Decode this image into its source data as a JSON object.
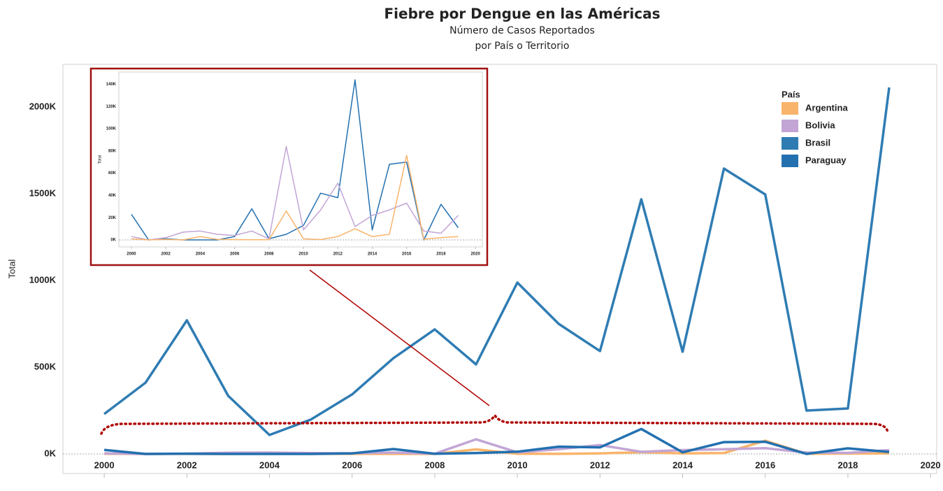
{
  "chart_data": [
    {
      "type": "line",
      "title": "Fiebre por Dengue en las Américas",
      "subtitle": [
        "Número de Casos Reportados",
        "por País o Territorio"
      ],
      "y_label": "Total",
      "x": [
        2000,
        2001,
        2002,
        2003,
        2004,
        2005,
        2006,
        2007,
        2008,
        2009,
        2010,
        2011,
        2012,
        2013,
        2014,
        2015,
        2016,
        2017,
        2018,
        2019
      ],
      "series": [
        {
          "name": "Argentina",
          "color": "#f9b46b",
          "values": [
            1000,
            0,
            500,
            0,
            3000,
            500,
            300,
            200,
            100,
            26000,
            1000,
            300,
            3000,
            10000,
            3000,
            5000,
            76000,
            600,
            2000,
            3000
          ]
        },
        {
          "name": "Bolivia",
          "color": "#c2a5d5",
          "values": [
            3000,
            0,
            2000,
            7000,
            8000,
            5000,
            4000,
            8000,
            1000,
            84000,
            9000,
            27000,
            51000,
            12000,
            22000,
            27000,
            33000,
            8000,
            6000,
            22000
          ]
        },
        {
          "name": "Brasil",
          "color": "#2f7cb3",
          "values": [
            230000,
            411000,
            770000,
            335000,
            109000,
            198000,
            343000,
            552000,
            718000,
            516000,
            988000,
            750000,
            593000,
            1468000,
            589000,
            1645000,
            1496000,
            250000,
            262000,
            2113000
          ]
        },
        {
          "name": "Paraguay",
          "color": "#2270b0",
          "values": [
            23000,
            0,
            1000,
            0,
            0,
            0,
            3000,
            28000,
            1000,
            5000,
            13000,
            42000,
            38000,
            144000,
            9000,
            68000,
            70000,
            0,
            32000,
            11000
          ]
        }
      ],
      "xlim": [
        1999,
        2020.15
      ],
      "xticks": [
        2000,
        2002,
        2004,
        2006,
        2008,
        2010,
        2012,
        2014,
        2016,
        2018,
        2020
      ],
      "ylim": [
        -113000,
        2246000
      ],
      "yticks": [
        {
          "value": 0,
          "label": "0K"
        },
        {
          "value": 500000,
          "label": "500K"
        },
        {
          "value": 1000000,
          "label": "1000K"
        },
        {
          "value": 1500000,
          "label": "1500K"
        },
        {
          "value": 2000000,
          "label": "2000K"
        }
      ],
      "legend": "top-right",
      "legend_title": "País",
      "grid": false
    },
    {
      "type": "line",
      "y_label": "Total",
      "x": [
        2000,
        2001,
        2002,
        2003,
        2004,
        2005,
        2006,
        2007,
        2008,
        2009,
        2010,
        2011,
        2012,
        2013,
        2014,
        2015,
        2016,
        2017,
        2018,
        2019
      ],
      "series": [
        {
          "color": "#2270b0",
          "values": [
            23000,
            0,
            1000,
            0,
            0,
            0,
            3000,
            28000,
            1000,
            5000,
            13000,
            42000,
            38000,
            144000,
            9000,
            68000,
            70000,
            0,
            32000,
            11000
          ]
        },
        {
          "color": "#c2a5d5",
          "values": [
            3000,
            0,
            2000,
            7000,
            8000,
            5000,
            4000,
            8000,
            1000,
            84000,
            9000,
            27000,
            51000,
            12000,
            22000,
            27000,
            33000,
            8000,
            6000,
            22000
          ]
        },
        {
          "color": "#f9b46b",
          "values": [
            1000,
            0,
            500,
            0,
            3000,
            500,
            300,
            200,
            100,
            26000,
            1000,
            300,
            3000,
            10000,
            3000,
            5000,
            76000,
            600,
            2000,
            3000
          ]
        }
      ],
      "xlim": [
        1999.27,
        2020.4
      ],
      "xticks": [
        2000,
        2002,
        2004,
        2006,
        2008,
        2010,
        2012,
        2014,
        2016,
        2018,
        2020
      ],
      "ylim": [
        -6300,
        151000
      ],
      "yticks": [
        {
          "value": 0,
          "label": "0K"
        },
        {
          "value": 20000,
          "label": "20K"
        },
        {
          "value": 40000,
          "label": "40K"
        },
        {
          "value": 60000,
          "label": "60K"
        },
        {
          "value": 80000,
          "label": "80K"
        },
        {
          "value": 100000,
          "label": "100K"
        },
        {
          "value": 120000,
          "label": "120K"
        },
        {
          "value": 140000,
          "label": "140K"
        }
      ],
      "grid": false
    }
  ]
}
